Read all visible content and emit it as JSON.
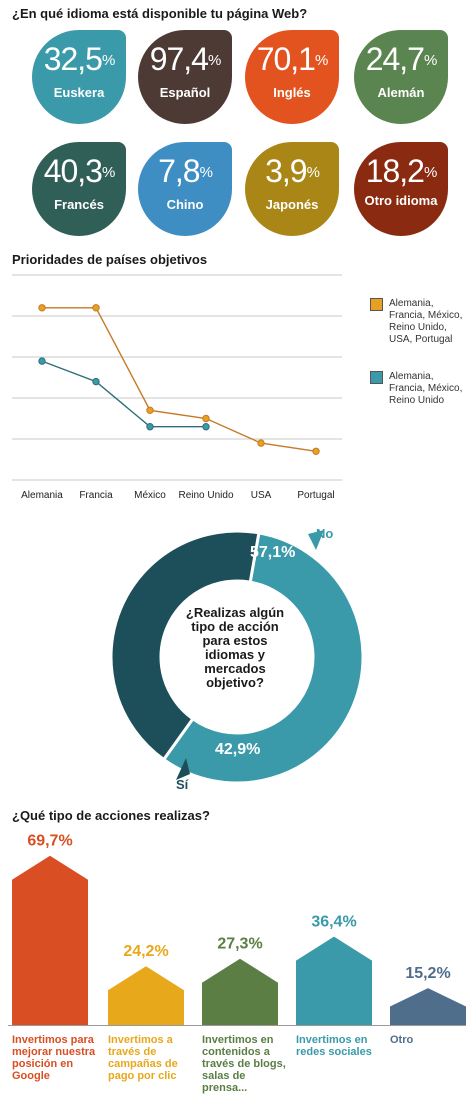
{
  "languages": {
    "title": "¿En qué idioma está disponible tu página Web?",
    "items": [
      {
        "value": "32,5",
        "label": "Euskera",
        "color": "#3a9aa9"
      },
      {
        "value": "97,4",
        "label": "Español",
        "color": "#4e3a34"
      },
      {
        "value": "70,1",
        "label": "Inglés",
        "color": "#e2531f"
      },
      {
        "value": "24,7",
        "label": "Alemán",
        "color": "#5a8450"
      },
      {
        "value": "40,3",
        "label": "Francés",
        "color": "#2f5f57"
      },
      {
        "value": "7,8",
        "label": "Chino",
        "color": "#3e8ec3"
      },
      {
        "value": "3,9",
        "label": "Japonés",
        "color": "#a98616"
      },
      {
        "value": "18,2",
        "label": "Otro idioma",
        "color": "#8a2a10"
      }
    ],
    "unit": "%"
  },
  "priorities": {
    "title": "Prioridades de países objetivos",
    "legend": [
      {
        "text": "Alemania, Francia, México, Reino Unido, USA, Portugal",
        "color": "#e8a020"
      },
      {
        "text": "Alemania, Francia, México, Reino Unido",
        "color": "#3a9aa9"
      }
    ]
  },
  "donut": {
    "question": "¿Realizas algún tipo de acción para estos idiomas y mercados objetivo?",
    "no_label": "No",
    "no_value": "57,1%",
    "si_label": "Sí",
    "si_value": "42,9%"
  },
  "actions": {
    "title": "¿Qué tipo de acciones realizas?"
  },
  "chart_data": [
    {
      "type": "line",
      "title": "Prioridades de países objetivos",
      "categories": [
        "Alemania",
        "Francia",
        "México",
        "Reino Unido",
        "USA",
        "Portugal"
      ],
      "series": [
        {
          "name": "Alemania, Francia, México, Reino Unido, USA, Portugal",
          "color": "#c57a26",
          "values": [
            4.2,
            4.2,
            1.7,
            1.5,
            0.9,
            0.7
          ]
        },
        {
          "name": "Alemania, Francia, México, Reino Unido",
          "color": "#2f6e7c",
          "values": [
            2.9,
            2.4,
            1.3,
            1.3,
            null,
            null
          ]
        }
      ],
      "ylim": [
        0,
        5
      ],
      "grid": true,
      "legend_position": "right"
    },
    {
      "type": "pie",
      "title": "¿Realizas algún tipo de acción para estos idiomas y mercados objetivo?",
      "labels": [
        "No",
        "Sí"
      ],
      "values": [
        57.1,
        42.9
      ],
      "colors": [
        "#3a9aa9",
        "#1c4f5a"
      ]
    },
    {
      "type": "bar",
      "title": "¿Qué tipo de acciones realizas?",
      "categories": [
        "Invertimos para mejorar nuestra posición en Google",
        "Invertimos a través de campañas de pago por clic",
        "Invertimos en contenidos a través de blogs, salas de prensa...",
        "Invertimos en redes sociales",
        "Otro"
      ],
      "values": [
        69.7,
        24.2,
        27.3,
        36.4,
        15.2
      ],
      "value_labels": [
        "69,7%",
        "24,2%",
        "27,3%",
        "36,4%",
        "15,2%"
      ],
      "colors": [
        "#d94e22",
        "#e8a81c",
        "#5a7e44",
        "#3a9aa9",
        "#4e6e8c"
      ],
      "ylim": [
        0,
        70
      ]
    }
  ]
}
